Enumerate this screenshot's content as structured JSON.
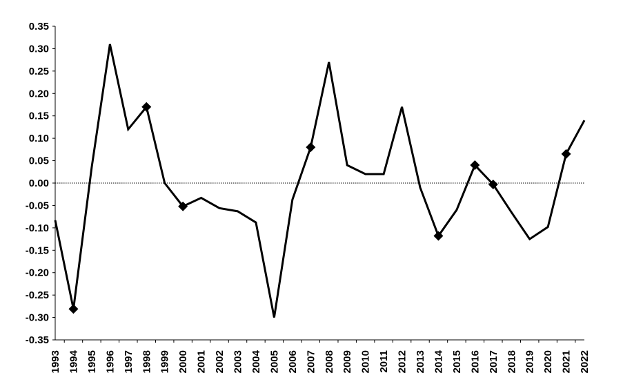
{
  "chart_data": {
    "type": "line",
    "x": [
      "1993",
      "1994",
      "1995",
      "1996",
      "1997",
      "1998",
      "1999",
      "2000",
      "2001",
      "2002",
      "2003",
      "2004",
      "2005",
      "2006",
      "2007",
      "2008",
      "2009",
      "2010",
      "2011",
      "2012",
      "2013",
      "2014",
      "2015",
      "2016",
      "2017",
      "2018",
      "2019",
      "2020",
      "2021",
      "2022"
    ],
    "series": [
      {
        "values": [
          -0.083,
          -0.281,
          0.035,
          0.31,
          0.12,
          0.17,
          0.0,
          -0.052,
          -0.033,
          -0.056,
          -0.063,
          -0.088,
          -0.3,
          -0.037,
          0.08,
          0.27,
          0.04,
          0.02,
          0.02,
          0.17,
          -0.01,
          -0.118,
          -0.06,
          0.04,
          -0.003,
          -0.065,
          -0.125,
          -0.098,
          0.065,
          0.14
        ],
        "markers": [
          1,
          5,
          7,
          14,
          21,
          23,
          24,
          28
        ]
      }
    ],
    "yticks": [
      "0.35",
      "0.30",
      "0.25",
      "0.20",
      "0.15",
      "0.10",
      "0.05",
      "0.00",
      "-0.05",
      "-0.10",
      "-0.15",
      "-0.20",
      "-0.25",
      "-0.30",
      "-0.35"
    ],
    "ylim": [
      -0.35,
      0.35
    ],
    "zero_line": "dotted",
    "grid": false,
    "title": "",
    "xlabel": "",
    "ylabel": "",
    "colors": {
      "line": "#000000",
      "marker": "#000000",
      "axis": "#000000"
    }
  }
}
